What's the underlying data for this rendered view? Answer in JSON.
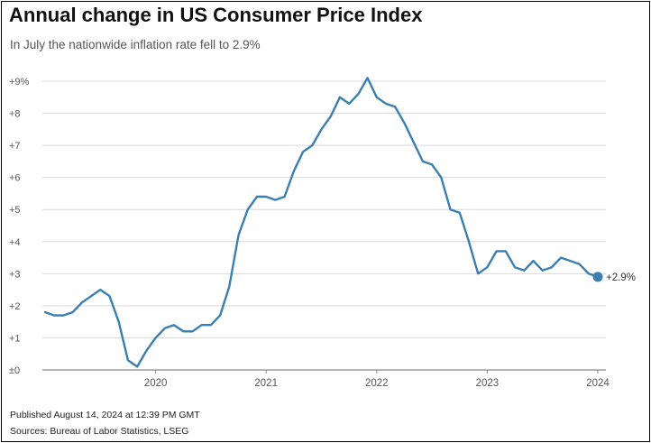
{
  "title": "Annual change in US Consumer Price Index",
  "subtitle": "In July the nationwide inflation rate fell to 2.9%",
  "footer": {
    "published": "Published August 14, 2024 at 12:39 PM GMT",
    "sources": "Sources: Bureau of Labor Statistics, LSEG"
  },
  "colors": {
    "line": "#3a7fb0",
    "grid": "#d9d9d9",
    "axis_text": "#555555"
  },
  "chart_data": {
    "type": "line",
    "title": "Annual change in US Consumer Price Index",
    "subtitle": "In July the nationwide inflation rate fell to 2.9%",
    "xlabel": "",
    "ylabel": "",
    "ylim": [
      0,
      9
    ],
    "grid": true,
    "y_ticks": [
      {
        "value": 0,
        "label": "±0"
      },
      {
        "value": 1,
        "label": "+1"
      },
      {
        "value": 2,
        "label": "+2"
      },
      {
        "value": 3,
        "label": "+3"
      },
      {
        "value": 4,
        "label": "+4"
      },
      {
        "value": 5,
        "label": "+5"
      },
      {
        "value": 6,
        "label": "+6"
      },
      {
        "value": 7,
        "label": "+7"
      },
      {
        "value": 8,
        "label": "+8"
      },
      {
        "value": 9,
        "label": "+9%"
      }
    ],
    "x_ticks": [
      "2020",
      "2021",
      "2022",
      "2023",
      "2024"
    ],
    "x": [
      "2019-07",
      "2019-08",
      "2019-09",
      "2019-10",
      "2019-11",
      "2019-12",
      "2020-01",
      "2020-02",
      "2020-03",
      "2020-04",
      "2020-05",
      "2020-06",
      "2020-07",
      "2020-08",
      "2020-09",
      "2020-10",
      "2020-11",
      "2020-12",
      "2021-01",
      "2021-02",
      "2021-03",
      "2021-04",
      "2021-05",
      "2021-06",
      "2021-07",
      "2021-08",
      "2021-09",
      "2021-10",
      "2021-11",
      "2021-12",
      "2022-01",
      "2022-02",
      "2022-03",
      "2022-04",
      "2022-05",
      "2022-06",
      "2022-07",
      "2022-08",
      "2022-09",
      "2022-10",
      "2022-11",
      "2022-12",
      "2023-01",
      "2023-02",
      "2023-03",
      "2023-04",
      "2023-05",
      "2023-06",
      "2023-07",
      "2023-08",
      "2023-09",
      "2023-10",
      "2023-11",
      "2023-12",
      "2024-01",
      "2024-02",
      "2024-03",
      "2024-04",
      "2024-05",
      "2024-06",
      "2024-07"
    ],
    "series": [
      {
        "values": [
          1.8,
          1.7,
          1.7,
          1.8,
          2.1,
          2.3,
          2.5,
          2.3,
          1.5,
          0.3,
          0.1,
          0.6,
          1.0,
          1.3,
          1.4,
          1.2,
          1.2,
          1.4,
          1.4,
          1.7,
          2.6,
          4.2,
          5.0,
          5.4,
          5.4,
          5.3,
          5.4,
          6.2,
          6.8,
          7.0,
          7.5,
          7.9,
          8.5,
          8.3,
          8.6,
          9.1,
          8.5,
          8.3,
          8.2,
          7.7,
          7.1,
          6.5,
          6.4,
          6.0,
          5.0,
          4.9,
          4.0,
          3.0,
          3.2,
          3.7,
          3.7,
          3.2,
          3.1,
          3.4,
          3.1,
          3.2,
          3.5,
          3.4,
          3.3,
          3.0,
          2.9
        ]
      }
    ],
    "end_label": "+2.9%"
  }
}
